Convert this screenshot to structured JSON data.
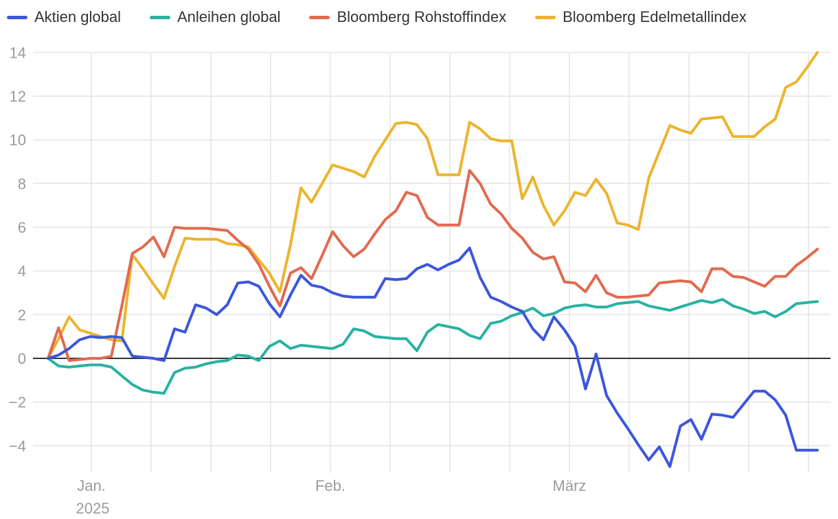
{
  "legend": [
    {
      "label": "Aktien global",
      "color": "#3d56dd"
    },
    {
      "label": "Anleihen global",
      "color": "#29b2a0"
    },
    {
      "label": "Bloomberg Rohstoffindex",
      "color": "#e16a4f"
    },
    {
      "label": "Bloomberg Edelmetallindex",
      "color": "#ecb42e"
    }
  ],
  "chart_data": {
    "type": "line",
    "title": "",
    "xlabel": "",
    "ylabel": "",
    "ylim": [
      -5.5,
      14.3
    ],
    "grid": true,
    "legend_position": "top-left",
    "zero_line_color": "#333333",
    "grid_color": "#e6e6e6",
    "tick_label_color": "#9b9b9b",
    "y_ticks": [
      {
        "v": 14,
        "label": "14"
      },
      {
        "v": 12,
        "label": "12"
      },
      {
        "v": 10,
        "label": "10"
      },
      {
        "v": 8,
        "label": "8"
      },
      {
        "v": 6,
        "label": "6"
      },
      {
        "v": 4,
        "label": "4"
      },
      {
        "v": 2,
        "label": "2"
      },
      {
        "v": 0,
        "label": "0"
      },
      {
        "v": -2,
        "label": "−2"
      },
      {
        "v": -4,
        "label": "−4"
      }
    ],
    "x_labels": [
      {
        "label": "Jan.",
        "sublabel": "2025",
        "grid_index": 0
      },
      {
        "label": "Feb.",
        "sublabel": "",
        "grid_index": 4
      },
      {
        "label": "März",
        "sublabel": "",
        "grid_index": 8
      }
    ],
    "series": [
      {
        "name": "Aktien global",
        "color": "#3d56dd",
        "values": [
          0,
          0.15,
          0.45,
          0.85,
          1.0,
          0.95,
          1.0,
          0.95,
          0.1,
          0.05,
          0.0,
          -0.1,
          1.35,
          1.2,
          2.45,
          2.3,
          2.0,
          2.45,
          3.45,
          3.5,
          3.3,
          2.5,
          1.9,
          2.9,
          3.8,
          3.35,
          3.25,
          3.0,
          2.85,
          2.8,
          2.8,
          2.8,
          3.65,
          3.6,
          3.65,
          4.1,
          4.3,
          4.05,
          4.3,
          4.5,
          5.05,
          3.7,
          2.8,
          2.6,
          2.35,
          2.15,
          1.35,
          0.85,
          1.9,
          1.3,
          0.55,
          -1.4,
          0.2,
          -1.7,
          -2.5,
          -3.2,
          -3.95,
          -4.65,
          -4.05,
          -4.95,
          -3.1,
          -2.8,
          -3.7,
          -2.55,
          -2.6,
          -2.7,
          -2.1,
          -1.5,
          -1.5,
          -1.9,
          -2.6,
          -4.2,
          -4.2,
          -4.2
        ]
      },
      {
        "name": "Anleihen global",
        "color": "#29b2a0",
        "values": [
          0,
          -0.35,
          -0.4,
          -0.35,
          -0.3,
          -0.3,
          -0.4,
          -0.8,
          -1.2,
          -1.45,
          -1.55,
          -1.6,
          -0.65,
          -0.45,
          -0.4,
          -0.25,
          -0.15,
          -0.1,
          0.15,
          0.1,
          -0.1,
          0.55,
          0.8,
          0.45,
          0.6,
          0.55,
          0.5,
          0.45,
          0.65,
          1.35,
          1.25,
          1.0,
          0.95,
          0.9,
          0.9,
          0.35,
          1.2,
          1.55,
          1.45,
          1.35,
          1.05,
          0.9,
          1.6,
          1.7,
          1.95,
          2.1,
          2.3,
          1.95,
          2.05,
          2.3,
          2.4,
          2.45,
          2.35,
          2.35,
          2.5,
          2.55,
          2.6,
          2.4,
          2.3,
          2.2,
          2.35,
          2.5,
          2.65,
          2.55,
          2.7,
          2.4,
          2.25,
          2.05,
          2.15,
          1.9,
          2.15,
          2.5,
          2.55,
          2.6
        ]
      },
      {
        "name": "Bloomberg Rohstoffindex",
        "color": "#e16a4f",
        "values": [
          0,
          1.4,
          -0.1,
          -0.05,
          0,
          0,
          0.1,
          2.4,
          4.8,
          5.1,
          5.55,
          4.65,
          6.0,
          5.95,
          5.95,
          5.95,
          5.9,
          5.85,
          5.4,
          5.0,
          4.3,
          3.3,
          2.4,
          3.9,
          4.15,
          3.65,
          4.7,
          5.8,
          5.15,
          4.65,
          5.0,
          5.7,
          6.35,
          6.75,
          7.6,
          7.45,
          6.45,
          6.1,
          6.1,
          6.1,
          8.6,
          8.0,
          7.05,
          6.6,
          5.95,
          5.5,
          4.85,
          4.55,
          4.65,
          3.5,
          3.45,
          3.05,
          3.8,
          3.0,
          2.8,
          2.8,
          2.85,
          2.9,
          3.45,
          3.5,
          3.55,
          3.5,
          3.05,
          4.1,
          4.1,
          3.75,
          3.7,
          3.5,
          3.3,
          3.75,
          3.75,
          4.25,
          4.6,
          5.0
        ]
      },
      {
        "name": "Bloomberg Edelmetallindex",
        "color": "#ecb42e",
        "values": [
          0,
          0.9,
          1.9,
          1.3,
          1.15,
          1.0,
          0.85,
          0.8,
          4.75,
          4.1,
          3.4,
          2.75,
          4.2,
          5.5,
          5.45,
          5.45,
          5.45,
          5.25,
          5.2,
          5.1,
          4.5,
          3.9,
          3.05,
          5.2,
          7.8,
          7.15,
          8.0,
          8.85,
          8.7,
          8.55,
          8.3,
          9.25,
          10.0,
          10.75,
          10.8,
          10.7,
          10.05,
          8.4,
          8.4,
          8.4,
          10.8,
          10.5,
          10.05,
          9.95,
          9.95,
          7.3,
          8.3,
          7.0,
          6.1,
          6.75,
          7.6,
          7.45,
          8.2,
          7.55,
          6.2,
          6.1,
          5.9,
          8.25,
          9.45,
          10.65,
          10.45,
          10.3,
          10.95,
          11.0,
          11.05,
          10.15,
          10.15,
          10.15,
          10.6,
          10.95,
          12.4,
          12.65,
          13.3,
          14.0
        ]
      }
    ]
  }
}
